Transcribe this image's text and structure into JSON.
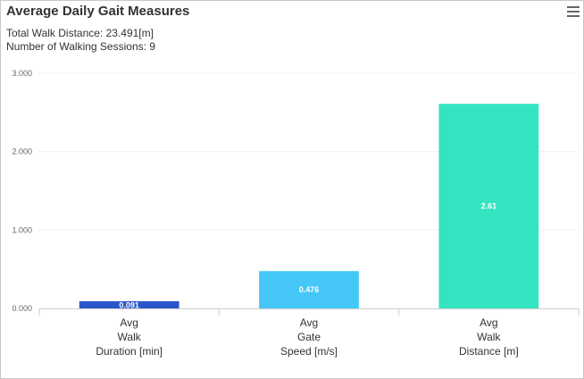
{
  "menu_icon": "hamburger-menu-icon",
  "chart_data": {
    "type": "bar",
    "title": "Average Daily Gait Measures",
    "subtitle_lines": [
      "Total Walk Distance: 23.491[m]",
      "Number of Walking Sessions: 9"
    ],
    "categories": [
      [
        "Avg",
        "Walk",
        "Duration [min]"
      ],
      [
        "Avg",
        "Gate",
        "Speed [m/s]"
      ],
      [
        "Avg",
        "Walk",
        "Distance [m]"
      ]
    ],
    "values": [
      0.091,
      0.476,
      2.61
    ],
    "value_labels": [
      "0.091",
      "0.476",
      "2.61"
    ],
    "colors": [
      "#2b56c9",
      "#45c7f7",
      "#34e4c0"
    ],
    "ylim": [
      0,
      3
    ],
    "yticks": [
      0,
      1,
      2,
      3
    ],
    "ytick_labels": [
      "0.000",
      "1.000",
      "2.000",
      "3.000"
    ],
    "grid": true,
    "xlabel": "",
    "ylabel": ""
  }
}
